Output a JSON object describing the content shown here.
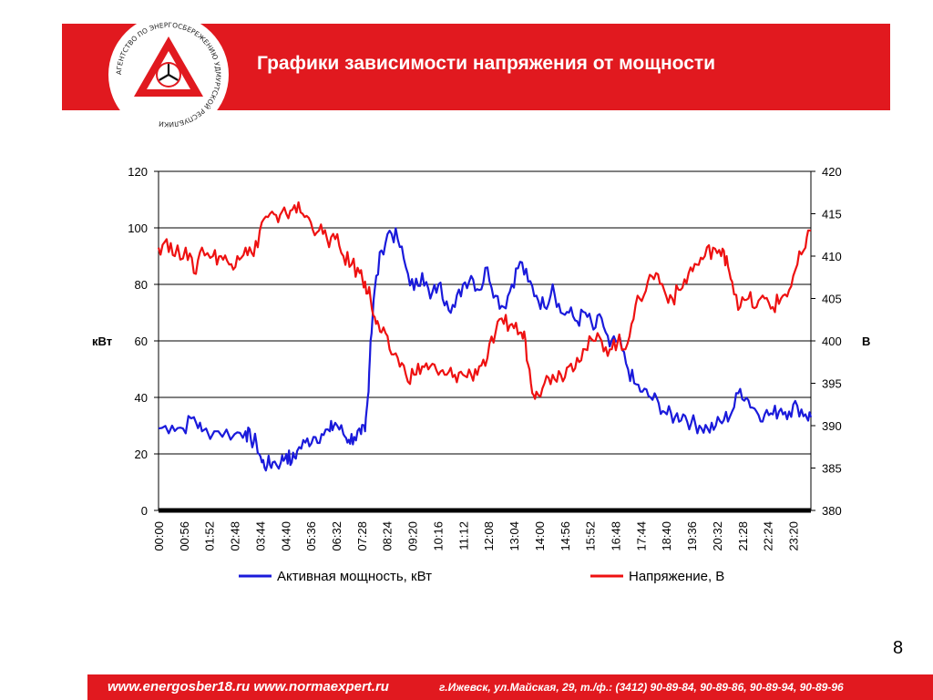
{
  "page": {
    "title": "Графики зависимости напряжения от мощности",
    "page_number": "8",
    "logo_text": "АГЕНТСТВО ПО ЭНЕРГОСБЕРЕЖЕНИЮ УДМУРТСКОЙ РЕСПУБЛИКИ",
    "footer_sites": "www.energosber18.ru www.normaexpert.ru",
    "footer_address": "г.Ижевск, ул.Майская, 29, т./ф.: (3412) 90-89-84, 90-89-86, 90-89-94, 90-89-96",
    "colors": {
      "brand": "#e1191f",
      "power": "#1a1adb",
      "voltage": "#ee1111"
    }
  },
  "chart_data": {
    "type": "line",
    "title": "",
    "ylabel": "кВт",
    "y2label": "В",
    "ylim": [
      0,
      120
    ],
    "y2lim": [
      380,
      420
    ],
    "yticks": [
      "0",
      "20",
      "40",
      "60",
      "80",
      "100",
      "120"
    ],
    "y2ticks": [
      "380",
      "385",
      "390",
      "395",
      "400",
      "405",
      "410",
      "415",
      "420"
    ],
    "xticks": [
      "00:00",
      "00:56",
      "01:52",
      "02:48",
      "03:44",
      "04:40",
      "05:36",
      "06:32",
      "07:28",
      "08:24",
      "09:20",
      "10:16",
      "11:12",
      "12:08",
      "13:04",
      "14:00",
      "14:56",
      "15:52",
      "16:48",
      "17:44",
      "18:40",
      "19:36",
      "20:32",
      "21:28",
      "22:24",
      "23:20"
    ],
    "grid": true,
    "legend": "bottom",
    "series": [
      {
        "name": "Активная мощность, кВт",
        "axis": "left",
        "color": "#1a1adb",
        "points": [
          [
            0,
            29
          ],
          [
            0.5,
            30
          ],
          [
            0.9,
            29
          ],
          [
            1.3,
            33
          ],
          [
            1.6,
            28
          ],
          [
            2.2,
            28
          ],
          [
            2.8,
            27
          ],
          [
            3.2,
            28
          ],
          [
            3.4,
            25
          ],
          [
            3.6,
            24
          ],
          [
            3.8,
            17
          ],
          [
            4.0,
            16
          ],
          [
            4.2,
            17
          ],
          [
            4.5,
            17
          ],
          [
            4.7,
            20
          ],
          [
            4.9,
            17
          ],
          [
            5.1,
            21
          ],
          [
            5.4,
            24
          ],
          [
            5.7,
            26
          ],
          [
            6.0,
            27
          ],
          [
            6.3,
            28
          ],
          [
            6.5,
            31
          ],
          [
            6.8,
            27
          ],
          [
            7.0,
            25
          ],
          [
            7.2,
            26
          ],
          [
            7.45,
            27
          ],
          [
            7.6,
            28
          ],
          [
            7.7,
            40
          ],
          [
            7.8,
            60
          ],
          [
            7.95,
            78
          ],
          [
            8.2,
            92
          ],
          [
            8.5,
            99
          ],
          [
            8.8,
            96
          ],
          [
            9.1,
            86
          ],
          [
            9.4,
            78
          ],
          [
            9.7,
            84
          ],
          [
            10.0,
            75
          ],
          [
            10.3,
            80
          ],
          [
            10.6,
            74
          ],
          [
            10.9,
            72
          ],
          [
            11.2,
            80
          ],
          [
            11.5,
            83
          ],
          [
            11.8,
            78
          ],
          [
            12.1,
            86
          ],
          [
            12.4,
            76
          ],
          [
            12.7,
            72
          ],
          [
            13.0,
            80
          ],
          [
            13.3,
            88
          ],
          [
            13.6,
            81
          ],
          [
            13.9,
            76
          ],
          [
            14.2,
            72
          ],
          [
            14.5,
            80
          ],
          [
            14.8,
            70
          ],
          [
            15.1,
            70
          ],
          [
            15.4,
            67
          ],
          [
            15.7,
            70
          ],
          [
            16.0,
            64
          ],
          [
            16.3,
            68
          ],
          [
            16.6,
            58
          ],
          [
            16.9,
            60
          ],
          [
            17.2,
            52
          ],
          [
            17.5,
            45
          ],
          [
            17.8,
            42
          ],
          [
            18.1,
            40
          ],
          [
            18.4,
            38
          ],
          [
            18.7,
            34
          ],
          [
            19.0,
            33
          ],
          [
            19.3,
            34
          ],
          [
            19.6,
            31
          ],
          [
            19.9,
            30
          ],
          [
            20.2,
            29
          ],
          [
            20.5,
            30
          ],
          [
            20.8,
            32
          ],
          [
            21.1,
            35
          ],
          [
            21.4,
            43
          ],
          [
            21.7,
            39
          ],
          [
            22.0,
            35
          ],
          [
            22.3,
            34
          ],
          [
            22.6,
            34
          ],
          [
            22.9,
            36
          ],
          [
            23.2,
            35
          ],
          [
            23.5,
            37
          ],
          [
            23.8,
            34
          ],
          [
            24.0,
            33
          ]
        ]
      },
      {
        "name": "Напряжение, В",
        "axis": "right",
        "color": "#ee1111",
        "points": [
          [
            0,
            411
          ],
          [
            0.3,
            412
          ],
          [
            0.6,
            410
          ],
          [
            1.0,
            411
          ],
          [
            1.3,
            408
          ],
          [
            1.6,
            411
          ],
          [
            2.0,
            410
          ],
          [
            2.3,
            410
          ],
          [
            2.6,
            409
          ],
          [
            2.9,
            410
          ],
          [
            3.2,
            411
          ],
          [
            3.5,
            410
          ],
          [
            3.8,
            414
          ],
          [
            4.1,
            415
          ],
          [
            4.4,
            414
          ],
          [
            4.7,
            415
          ],
          [
            5.0,
            416
          ],
          [
            5.3,
            415
          ],
          [
            5.6,
            414
          ],
          [
            5.9,
            413
          ],
          [
            6.2,
            412
          ],
          [
            6.5,
            412
          ],
          [
            6.8,
            410
          ],
          [
            7.1,
            409
          ],
          [
            7.4,
            408
          ],
          [
            7.6,
            407
          ],
          [
            7.8,
            405
          ],
          [
            8.0,
            402
          ],
          [
            8.2,
            401
          ],
          [
            8.5,
            399
          ],
          [
            8.8,
            398
          ],
          [
            9.1,
            396
          ],
          [
            9.4,
            396
          ],
          [
            9.7,
            397
          ],
          [
            10.0,
            397
          ],
          [
            10.3,
            396
          ],
          [
            10.6,
            396
          ],
          [
            10.9,
            396
          ],
          [
            11.2,
            396
          ],
          [
            11.5,
            396
          ],
          [
            11.8,
            397
          ],
          [
            12.1,
            398
          ],
          [
            12.4,
            401
          ],
          [
            12.7,
            402
          ],
          [
            13.0,
            402
          ],
          [
            13.3,
            401
          ],
          [
            13.5,
            400
          ],
          [
            13.7,
            395
          ],
          [
            13.9,
            394
          ],
          [
            14.2,
            395
          ],
          [
            14.5,
            396
          ],
          [
            14.8,
            396
          ],
          [
            15.1,
            397
          ],
          [
            15.4,
            398
          ],
          [
            15.7,
            399
          ],
          [
            16.0,
            400
          ],
          [
            16.3,
            400
          ],
          [
            16.6,
            399
          ],
          [
            16.9,
            400
          ],
          [
            17.1,
            399
          ],
          [
            17.4,
            402
          ],
          [
            17.7,
            405
          ],
          [
            18.0,
            407
          ],
          [
            18.3,
            408
          ],
          [
            18.6,
            406
          ],
          [
            18.9,
            405
          ],
          [
            19.2,
            406
          ],
          [
            19.5,
            408
          ],
          [
            19.8,
            409
          ],
          [
            20.1,
            410
          ],
          [
            20.4,
            411
          ],
          [
            20.7,
            410
          ],
          [
            20.9,
            410
          ],
          [
            21.1,
            407
          ],
          [
            21.4,
            404
          ],
          [
            21.7,
            405
          ],
          [
            22.0,
            404
          ],
          [
            22.3,
            405
          ],
          [
            22.6,
            404
          ],
          [
            22.9,
            405
          ],
          [
            23.2,
            406
          ],
          [
            23.5,
            409
          ],
          [
            23.8,
            411
          ],
          [
            24.0,
            413
          ]
        ]
      }
    ]
  }
}
